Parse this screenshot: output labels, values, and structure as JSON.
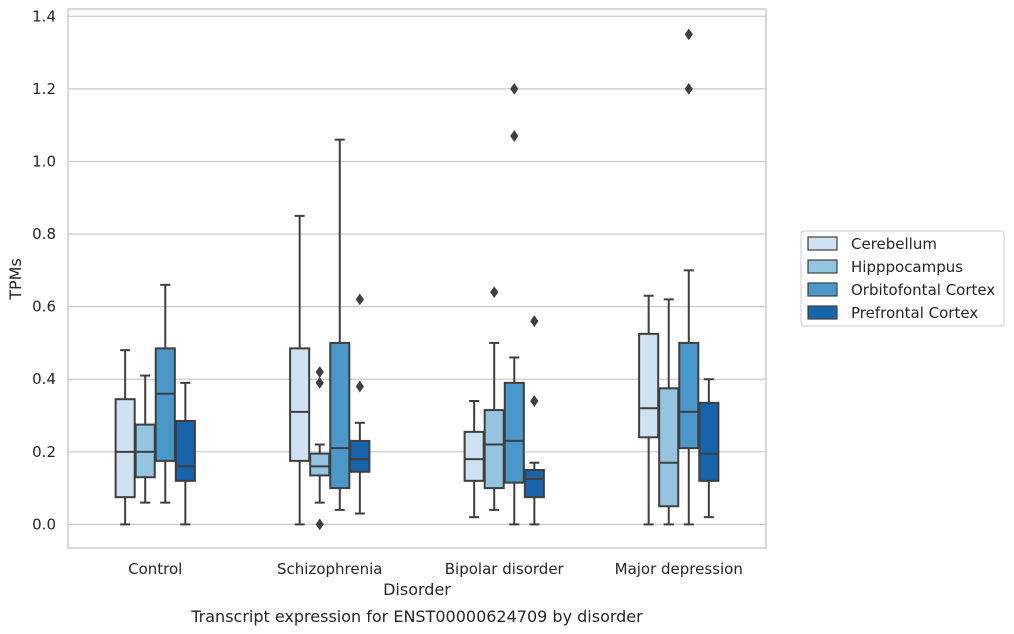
{
  "caption": "Transcript expression for ENST00000624709 by disorder",
  "chart_data": {
    "type": "box",
    "title": "",
    "xlabel": "Disorder",
    "ylabel": "TPMs",
    "categories": [
      "Control",
      "Schizophrenia",
      "Bipolar disorder",
      "Major depression"
    ],
    "y_ticks": [
      "0.0",
      "0.2",
      "0.4",
      "0.6",
      "0.8",
      "1.0",
      "1.2",
      "1.4"
    ],
    "ylim": [
      -0.065,
      1.42
    ],
    "grid": true,
    "legend_position": "right",
    "series": [
      {
        "name": "Cerebellum",
        "color": "#d0e1f2",
        "boxes": [
          {
            "whisker_low": 0.0,
            "q1": 0.075,
            "median": 0.2,
            "q3": 0.345,
            "whisker_high": 0.48,
            "outliers": []
          },
          {
            "whisker_low": 0.0,
            "q1": 0.175,
            "median": 0.31,
            "q3": 0.485,
            "whisker_high": 0.85,
            "outliers": []
          },
          {
            "whisker_low": 0.02,
            "q1": 0.12,
            "median": 0.18,
            "q3": 0.255,
            "whisker_high": 0.34,
            "outliers": []
          },
          {
            "whisker_low": 0.0,
            "q1": 0.24,
            "median": 0.32,
            "q3": 0.525,
            "whisker_high": 0.63,
            "outliers": []
          }
        ]
      },
      {
        "name": "Hipppocampus",
        "color": "#94c4df",
        "boxes": [
          {
            "whisker_low": 0.06,
            "q1": 0.13,
            "median": 0.2,
            "q3": 0.275,
            "whisker_high": 0.41,
            "outliers": []
          },
          {
            "whisker_low": 0.06,
            "q1": 0.135,
            "median": 0.16,
            "q3": 0.195,
            "whisker_high": 0.22,
            "outliers": [
              0.0,
              0.39,
              0.42
            ]
          },
          {
            "whisker_low": 0.04,
            "q1": 0.1,
            "median": 0.22,
            "q3": 0.315,
            "whisker_high": 0.5,
            "outliers": [
              0.64
            ]
          },
          {
            "whisker_low": 0.0,
            "q1": 0.05,
            "median": 0.17,
            "q3": 0.375,
            "whisker_high": 0.62,
            "outliers": []
          }
        ]
      },
      {
        "name": "Orbitofontal Cortex",
        "color": "#4a98c9",
        "boxes": [
          {
            "whisker_low": 0.06,
            "q1": 0.175,
            "median": 0.36,
            "q3": 0.485,
            "whisker_high": 0.66,
            "outliers": []
          },
          {
            "whisker_low": 0.04,
            "q1": 0.1,
            "median": 0.21,
            "q3": 0.5,
            "whisker_high": 1.06,
            "outliers": []
          },
          {
            "whisker_low": 0.0,
            "q1": 0.115,
            "median": 0.23,
            "q3": 0.39,
            "whisker_high": 0.46,
            "outliers": [
              1.07,
              1.2
            ]
          },
          {
            "whisker_low": 0.0,
            "q1": 0.21,
            "median": 0.31,
            "q3": 0.5,
            "whisker_high": 0.7,
            "outliers": [
              1.2,
              1.35
            ]
          }
        ]
      },
      {
        "name": "Prefrontal Cortex",
        "color": "#1764ab",
        "boxes": [
          {
            "whisker_low": 0.0,
            "q1": 0.12,
            "median": 0.16,
            "q3": 0.285,
            "whisker_high": 0.39,
            "outliers": []
          },
          {
            "whisker_low": 0.03,
            "q1": 0.145,
            "median": 0.18,
            "q3": 0.23,
            "whisker_high": 0.28,
            "outliers": [
              0.38,
              0.62
            ]
          },
          {
            "whisker_low": 0.0,
            "q1": 0.075,
            "median": 0.125,
            "q3": 0.15,
            "whisker_high": 0.17,
            "outliers": [
              0.34,
              0.56
            ]
          },
          {
            "whisker_low": 0.02,
            "q1": 0.12,
            "median": 0.195,
            "q3": 0.335,
            "whisker_high": 0.4,
            "outliers": []
          }
        ]
      }
    ]
  }
}
